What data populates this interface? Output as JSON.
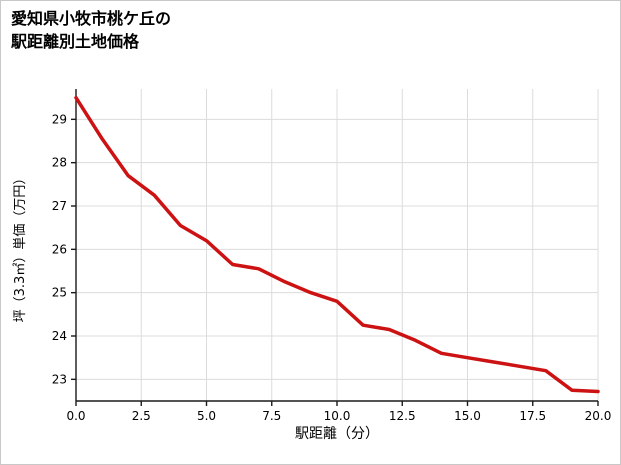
{
  "title": {
    "line1": "愛知県小牧市桃ケ丘の",
    "line2": "駅距離別土地価格"
  },
  "colors": {
    "line": "#cc1212",
    "grid": "#dcdcdc",
    "axis": "#1a1a1a",
    "tick_text": "#000000",
    "border": "#c8c8c8",
    "background": "#ffffff"
  },
  "chart_data": {
    "type": "line",
    "title": "愛知県小牧市桃ケ丘の駅距離別土地価格",
    "xlabel": "駅距離（分）",
    "ylabel": "坪（3.3㎡）単価（万円）",
    "x": [
      0,
      1,
      2,
      3,
      4,
      5,
      6,
      7,
      8,
      9,
      10,
      11,
      12,
      13,
      14,
      15,
      16,
      17,
      18,
      19,
      20
    ],
    "y": [
      29.5,
      28.55,
      27.7,
      27.25,
      26.55,
      26.2,
      25.65,
      25.55,
      25.25,
      25.0,
      24.8,
      24.25,
      24.15,
      23.9,
      23.6,
      23.5,
      23.4,
      23.3,
      23.2,
      22.75,
      22.72
    ],
    "xlim": [
      0,
      20
    ],
    "ylim": [
      22.5,
      29.7
    ],
    "xticks": [
      0,
      2.5,
      5,
      7.5,
      10,
      12.5,
      15,
      17.5,
      20
    ],
    "xtick_labels": [
      "0.0",
      "2.5",
      "5.0",
      "7.5",
      "10.0",
      "12.5",
      "15.0",
      "17.5",
      "20.0"
    ],
    "yticks": [
      23,
      24,
      25,
      26,
      27,
      28,
      29
    ],
    "ytick_labels": [
      "23",
      "24",
      "25",
      "26",
      "27",
      "28",
      "29"
    ],
    "grid": true,
    "legend": "none",
    "line_color": "#cc1212",
    "line_width": 3.5
  }
}
